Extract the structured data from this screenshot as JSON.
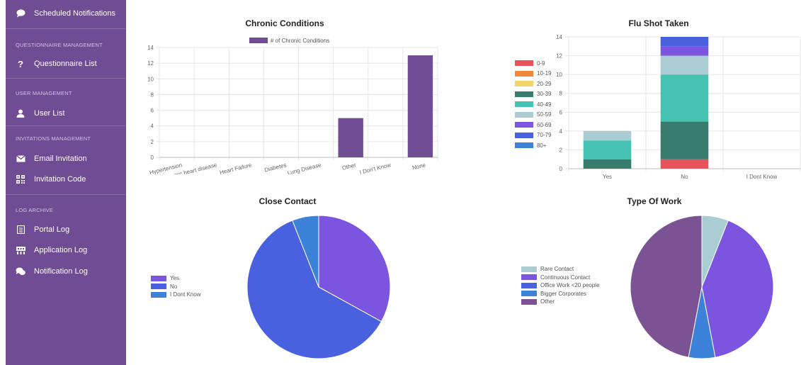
{
  "sidebar": {
    "items": [
      {
        "label": "Scheduled Notifications",
        "icon": "comment-icon"
      },
      {
        "section": "QUESTIONNAIRE MANAGEMENT"
      },
      {
        "label": "Questionnaire List",
        "icon": "question-icon"
      },
      {
        "section": "USER MANAGEMENT"
      },
      {
        "label": "User List",
        "icon": "user-icon"
      },
      {
        "section": "INVITATIONS MANAGEMENT"
      },
      {
        "label": "Email Invitation",
        "icon": "envelope-icon"
      },
      {
        "label": "Invitation Code",
        "icon": "qrcode-icon"
      },
      {
        "section": "LOG ARCHIVE"
      },
      {
        "label": "Portal Log",
        "icon": "file-icon"
      },
      {
        "label": "Application Log",
        "icon": "server-icon"
      },
      {
        "label": "Notification Log",
        "icon": "comments-icon"
      }
    ],
    "colors": {
      "background": "#6f4c93"
    }
  },
  "chart_data": [
    {
      "type": "bar",
      "title": "Chronic Conditions",
      "categories": [
        "Hypertension",
        "Ischemic heart disease",
        "Heart Failure",
        "Diabetes",
        "Lung Disease",
        "Other",
        "I Don't Know",
        "None"
      ],
      "series": [
        {
          "name": "# of Chronic Conditions",
          "values": [
            0,
            0,
            0,
            0,
            0,
            5,
            0,
            13
          ],
          "color": "#6f4c93"
        }
      ],
      "ylim": [
        0,
        14
      ],
      "yticks": [
        "0",
        "2",
        "4",
        "6",
        "8",
        "10",
        "12",
        "14"
      ],
      "legend": "top",
      "grid": true
    },
    {
      "type": "bar",
      "stacked": true,
      "title": "Flu Shot Taken",
      "categories": [
        "Yes",
        "No",
        "I Dont Know"
      ],
      "series": [
        {
          "name": "0-9",
          "values": [
            0,
            1,
            0
          ],
          "color": "#e8525a"
        },
        {
          "name": "10-19",
          "values": [
            0,
            0,
            0
          ],
          "color": "#f2883a"
        },
        {
          "name": "20-29",
          "values": [
            0,
            0,
            0
          ],
          "color": "#f2d56a"
        },
        {
          "name": "30-39",
          "values": [
            1,
            4,
            0
          ],
          "color": "#387c6d"
        },
        {
          "name": "40-49",
          "values": [
            2,
            5,
            0
          ],
          "color": "#45c2b1"
        },
        {
          "name": "50-59",
          "values": [
            1,
            2,
            0
          ],
          "color": "#a9cdd3"
        },
        {
          "name": "60-69",
          "values": [
            0,
            1,
            0
          ],
          "color": "#7b55e0"
        },
        {
          "name": "70-79",
          "values": [
            0,
            1,
            0
          ],
          "color": "#4960df"
        },
        {
          "name": "80+",
          "values": [
            0,
            0,
            0
          ],
          "color": "#3b82d8"
        }
      ],
      "ylim": [
        0,
        14
      ],
      "yticks": [
        "0",
        "2",
        "4",
        "6",
        "8",
        "10",
        "12",
        "14"
      ],
      "legend": "left",
      "grid": true
    },
    {
      "type": "pie",
      "title": "Close Contact",
      "labels": [
        "Yes",
        "No",
        "I Dont Know"
      ],
      "values": [
        33,
        61,
        6
      ],
      "colors": [
        "#7b55e0",
        "#4960df",
        "#3b82d8"
      ],
      "legend": "left"
    },
    {
      "type": "pie",
      "title": "Type Of Work",
      "labels": [
        "Rare Contact",
        "Continuous Contact",
        "Office Work <20 people",
        "Bigger Corporates",
        "Other"
      ],
      "values": [
        6,
        41,
        0,
        6,
        47
      ],
      "colors": [
        "#a9cdd3",
        "#7b55e0",
        "#4960df",
        "#3b82d8",
        "#7b5293"
      ],
      "legend": "left"
    }
  ]
}
